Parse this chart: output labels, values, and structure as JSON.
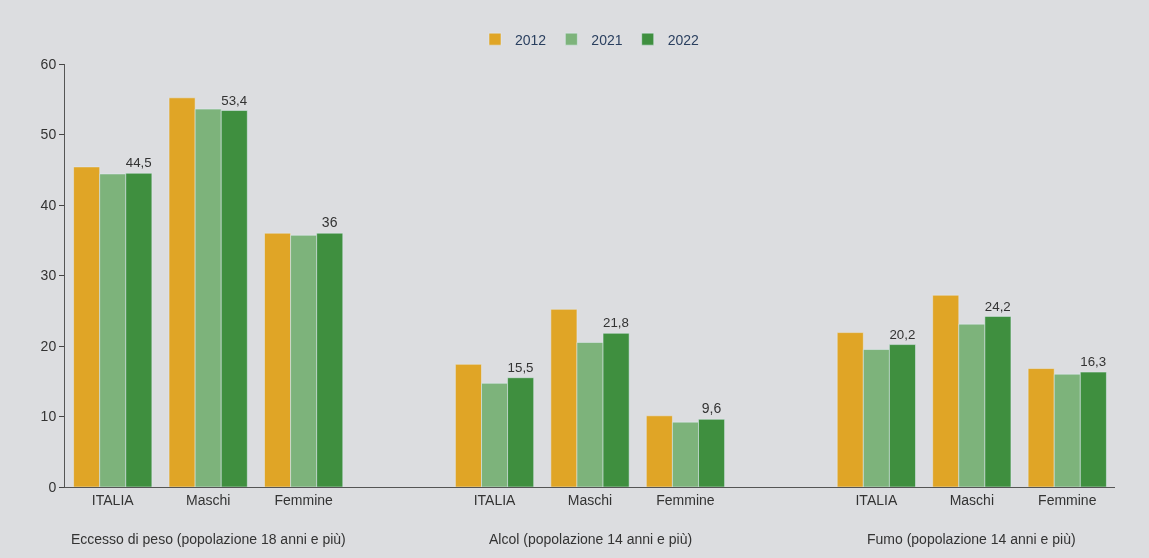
{
  "chart_data": {
    "type": "bar",
    "categories": [
      "ITALIA",
      "Maschi",
      "Femmine",
      null,
      "ITALIA",
      "Maschi",
      "Femmine",
      null,
      "ITALIA",
      "Maschi",
      "Femmine"
    ],
    "series": [
      {
        "name": "2012",
        "color": "#e0a526",
        "values": [
          45.4,
          55.2,
          36.0,
          null,
          17.4,
          25.2,
          10.1,
          null,
          21.9,
          27.2,
          16.8
        ]
      },
      {
        "name": "2021",
        "color": "#7db37b",
        "values": [
          44.4,
          53.6,
          35.7,
          null,
          14.7,
          20.5,
          9.2,
          null,
          19.5,
          23.1,
          16.0
        ]
      },
      {
        "name": "2022",
        "color": "#3f8f3f",
        "values": [
          44.5,
          53.4,
          36,
          null,
          15.5,
          21.8,
          9.6,
          null,
          20.2,
          24.2,
          16.3
        ],
        "value_labels": [
          "44,5",
          "53,4",
          "36",
          null,
          "15,5",
          "21,8",
          "9,6",
          null,
          "20,2",
          "24,2",
          "16,3"
        ]
      }
    ],
    "ylim": [
      0,
      60
    ],
    "yticks": [
      0,
      10,
      20,
      30,
      40,
      50,
      60
    ],
    "grid": false,
    "legend": "top",
    "annotations": [
      "Eccesso di peso (popolazione 18 anni e più)",
      "Alcol (popolazione 14 anni e più)",
      "Fumo (popolazione 14 anni e più)"
    ]
  }
}
